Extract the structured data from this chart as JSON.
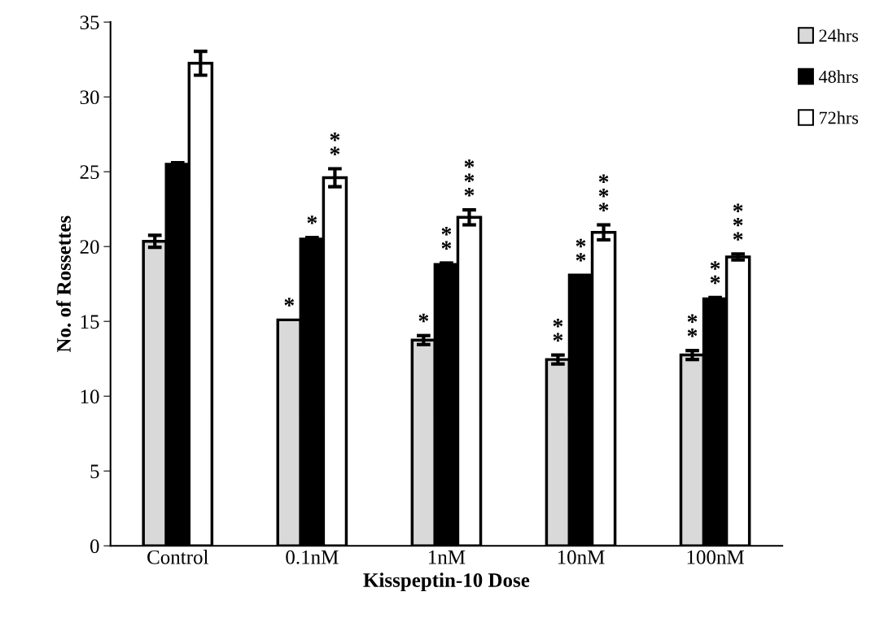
{
  "chart_data": {
    "type": "bar",
    "xlabel": "Kisspeptin-10 Dose",
    "ylabel": "No. of Rossettes",
    "categories": [
      "Control",
      "0.1nM",
      "1nM",
      "10nM",
      "100nM"
    ],
    "series": [
      {
        "name": "24hrs",
        "color": "#d9d9d9",
        "values": [
          20.35,
          15.1,
          13.75,
          12.45,
          12.75
        ],
        "errors": [
          0.4,
          null,
          0.3,
          0.3,
          0.3
        ],
        "value_labels": [
          null,
          "*",
          "*",
          "**",
          "**"
        ]
      },
      {
        "name": "48hrs",
        "color": "#000000",
        "values": [
          25.5,
          20.5,
          18.8,
          18.1,
          16.5
        ],
        "errors": [
          0.1,
          0.1,
          0.1,
          null,
          0.1
        ],
        "value_labels": [
          null,
          "*",
          "**",
          "**",
          "**"
        ]
      },
      {
        "name": "72hrs",
        "color": "#ffffff",
        "values": [
          32.25,
          24.6,
          21.95,
          20.95,
          19.3
        ],
        "errors": [
          0.8,
          0.6,
          0.5,
          0.5,
          0.2
        ],
        "value_labels": [
          null,
          "**",
          "***",
          "***",
          "***"
        ]
      }
    ],
    "ylim": [
      0,
      35
    ],
    "yticks": [
      0,
      5,
      10,
      15,
      20,
      25,
      30,
      35
    ],
    "grid": false,
    "legend": "top right"
  }
}
